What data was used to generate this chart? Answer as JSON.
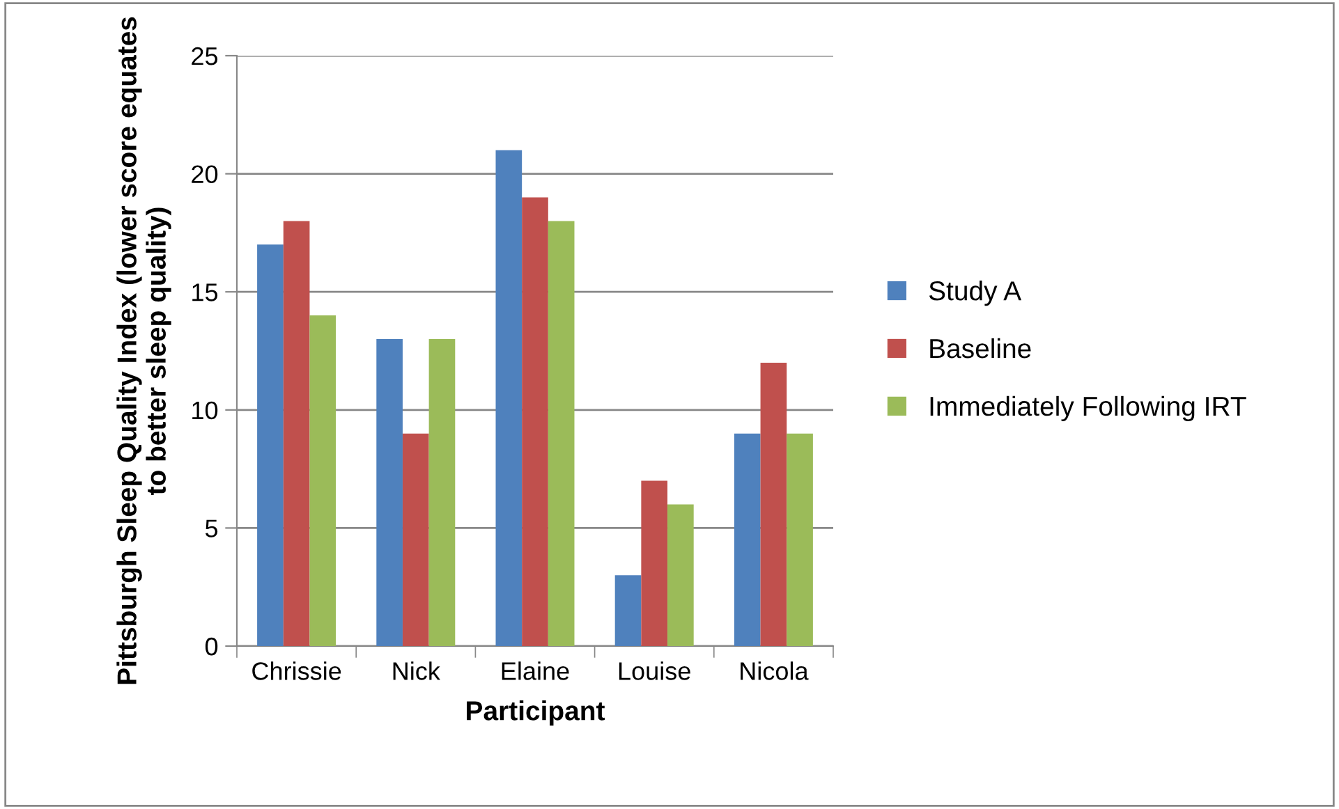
{
  "chart_data": {
    "type": "bar",
    "xlabel": "Participant",
    "ylabel": "Pittsburgh Sleep Quality Index (lower score equates to better sleep quality)",
    "categories": [
      "Chrissie",
      "Nick",
      "Elaine",
      "Louise",
      "Nicola"
    ],
    "series": [
      {
        "name": "Study A",
        "color": "#4f81bd",
        "values": [
          17,
          13,
          21,
          3,
          9
        ]
      },
      {
        "name": "Baseline",
        "color": "#c0504d",
        "values": [
          18,
          9,
          19,
          7,
          12
        ]
      },
      {
        "name": "Immediately Following IRT",
        "color": "#9bbb59",
        "values": [
          14,
          13,
          18,
          6,
          9
        ]
      }
    ],
    "ylim": [
      0,
      25
    ],
    "yticks": [
      0,
      5,
      10,
      15,
      20,
      25
    ],
    "grid": "y",
    "legend": "right"
  }
}
